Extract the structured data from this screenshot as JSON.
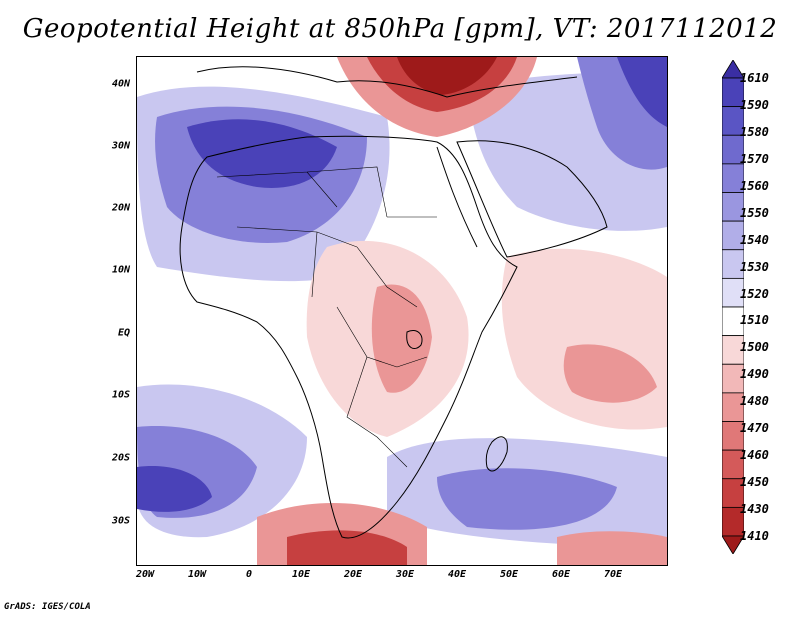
{
  "title": "Geopotential Height at 850hPa [gpm], VT: 2017112012",
  "credit": "GrADS: IGES/COLA",
  "axes": {
    "lat_labels": [
      "40N",
      "30N",
      "20N",
      "10N",
      "EQ",
      "10S",
      "20S",
      "30S"
    ],
    "lon_labels": [
      "20W",
      "10W",
      "0",
      "10E",
      "20E",
      "30E",
      "40E",
      "50E",
      "60E",
      "70E"
    ]
  },
  "colorbar": {
    "levels": [
      "1610",
      "1590",
      "1580",
      "1570",
      "1560",
      "1550",
      "1540",
      "1530",
      "1520",
      "1510",
      "1500",
      "1490",
      "1480",
      "1470",
      "1460",
      "1450",
      "1430",
      "1410"
    ],
    "colors": [
      "#3a2ea3",
      "#4a42b8",
      "#5a55c4",
      "#6f6ace",
      "#8580d8",
      "#9a96e0",
      "#b1aee8",
      "#c9c7f0",
      "#e0dff7",
      "#ffffff",
      "#f8d8d8",
      "#f2b8b8",
      "#ea9696",
      "#e07878",
      "#d45a5a",
      "#c64040",
      "#b42a2a",
      "#9e1a1a"
    ]
  },
  "map": {
    "projection": "lat-lon",
    "lon_range": [
      -23,
      80
    ],
    "lat_range": [
      -37,
      45
    ],
    "field_colors": {
      "high_deep": "#4a42b8",
      "high_mid": "#8580d8",
      "high_light": "#c9c7f0",
      "neutral": "#ffffff",
      "low_light": "#f8d8d8",
      "low_mid": "#ea9696",
      "low_deep": "#c64040",
      "low_darkest": "#9e1a1a"
    }
  }
}
